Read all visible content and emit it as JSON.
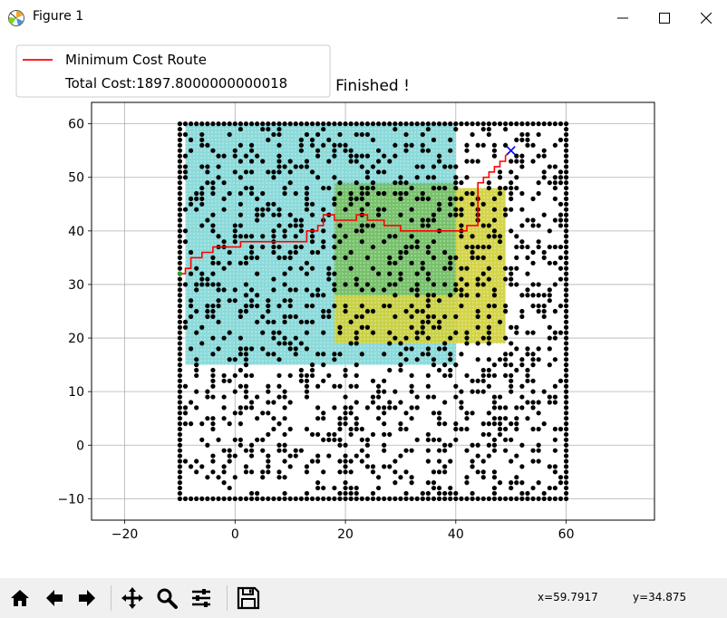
{
  "window": {
    "title": "Figure 1",
    "app_icon": "matplotlib-icon",
    "controls": [
      "minimize-icon",
      "maximize-icon",
      "close-icon"
    ]
  },
  "toolbar": {
    "buttons": [
      "home-icon",
      "back-icon",
      "forward-icon",
      "pan-icon",
      "zoom-icon",
      "configure-subplots-icon",
      "save-icon"
    ],
    "x_readout": "x=59.7917",
    "y_readout": "y=34.875"
  },
  "chart_data": {
    "type": "scatter",
    "title": "Finished !",
    "title_visible_fragment": "Finished !",
    "xlabel": "",
    "ylabel": "",
    "xlim": [
      -26,
      76
    ],
    "ylim": [
      -14,
      64
    ],
    "grid": true,
    "xticks": [
      -20,
      0,
      20,
      40,
      60
    ],
    "yticks": [
      -10,
      0,
      10,
      20,
      30,
      40,
      50,
      60
    ],
    "legend": {
      "placement": "upper-left",
      "entries": [
        {
          "label": "Minimum Cost Route",
          "color": "#ff0000",
          "style": "line"
        },
        {
          "label": "Total Cost:1897.8000000000018",
          "color": null,
          "style": "none"
        }
      ]
    },
    "colors": {
      "obstacle": "#000000",
      "route": "#ff0000",
      "cyan_region": "#7fd6d6",
      "yellow_region": "#cfcf36",
      "green_region": "#6fbf6f",
      "goal": "#0000ff"
    },
    "regions": [
      {
        "name": "cyan-cost-area",
        "x": [
          -9,
          40
        ],
        "y": [
          15,
          60
        ],
        "color": "#7fd6d6"
      },
      {
        "name": "yellow-cost-area",
        "x": [
          18,
          49
        ],
        "y": [
          19,
          48
        ],
        "color": "#cfcf36"
      },
      {
        "name": "green-overlap-area",
        "x": [
          18,
          40
        ],
        "y": [
          28,
          49
        ],
        "color": "#6fbf6f"
      }
    ],
    "boundary": {
      "x": [
        -10,
        60
      ],
      "y": [
        -10,
        60
      ]
    },
    "obstacle_count_estimate": 1100,
    "start": {
      "x": -10,
      "y": 32
    },
    "goal": {
      "x": 50,
      "y": 55
    },
    "route": {
      "name": "Minimum Cost Route",
      "x": [
        -10,
        -9,
        -9,
        -8,
        -8,
        -6,
        -6,
        -4,
        -4,
        0,
        0,
        1,
        1,
        3,
        3,
        8,
        8,
        13,
        13,
        15,
        15,
        16,
        16,
        18,
        18,
        22,
        22,
        24,
        24,
        27,
        27,
        30,
        30,
        33,
        33,
        36,
        36,
        42,
        42,
        44,
        44,
        45,
        45,
        46,
        46,
        47,
        47,
        48,
        48,
        49,
        49,
        50
      ],
      "y": [
        32,
        32,
        33,
        33,
        35,
        35,
        36,
        36,
        37,
        37,
        37,
        37,
        38,
        38,
        38,
        38,
        38,
        38,
        40,
        40,
        41,
        41,
        43,
        43,
        42,
        42,
        43,
        43,
        42,
        42,
        41,
        41,
        40,
        40,
        40,
        40,
        40,
        40,
        41,
        41,
        49,
        49,
        50,
        50,
        51,
        51,
        52,
        52,
        53,
        53,
        54,
        55
      ]
    }
  }
}
